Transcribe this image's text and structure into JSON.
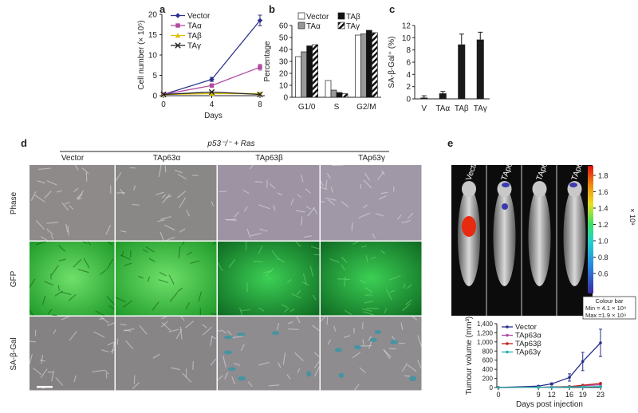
{
  "panels": {
    "a": "a",
    "b": "b",
    "c": "c",
    "d": "d",
    "e": "e"
  },
  "chart_data": [
    {
      "id": "a",
      "type": "line",
      "xlabel": "Days",
      "ylabel": "Cell number (× 10⁵)",
      "x": [
        0,
        4,
        8
      ],
      "xticks": [
        "0",
        "4",
        "8"
      ],
      "ylim": [
        0,
        20
      ],
      "yticks": [
        "0",
        "5",
        "10",
        "15",
        "20"
      ],
      "series": [
        {
          "name": "Vector",
          "values": [
            0.3,
            4,
            18.5
          ],
          "err": [
            0,
            0.5,
            1.3
          ],
          "color": "#2a2f8c",
          "marker": "diamond"
        },
        {
          "name": "TAα",
          "values": [
            0.3,
            2.5,
            7
          ],
          "err": [
            0,
            0.3,
            0.7
          ],
          "color": "#b04aa0",
          "marker": "square"
        },
        {
          "name": "TAβ",
          "values": [
            0.3,
            0.5,
            0.5
          ],
          "err": [
            0,
            0,
            0
          ],
          "color": "#e0c000",
          "marker": "triangle"
        },
        {
          "name": "TAγ",
          "values": [
            0.3,
            0.9,
            0.3
          ],
          "err": [
            0,
            0,
            0
          ],
          "color": "#222222",
          "marker": "x"
        }
      ]
    },
    {
      "id": "b",
      "type": "bar",
      "ylabel": "Percentage",
      "categories": [
        "G1/0",
        "S",
        "G2/M"
      ],
      "ylim": [
        0,
        60
      ],
      "yticks": [
        "0",
        "10",
        "20",
        "30",
        "40",
        "50",
        "60"
      ],
      "series": [
        {
          "name": "Vector",
          "values": [
            34,
            14,
            52
          ],
          "fill": "#ffffff"
        },
        {
          "name": "TAα",
          "values": [
            38,
            6,
            53
          ],
          "fill": "#999999"
        },
        {
          "name": "TAβ",
          "values": [
            43,
            4,
            56
          ],
          "fill": "#111111"
        },
        {
          "name": "TAγ",
          "values": [
            44,
            3,
            54
          ],
          "fill": "hatch"
        }
      ]
    },
    {
      "id": "c",
      "type": "bar",
      "ylabel": "SA-β-Gal⁺ (%)",
      "categories": [
        "V",
        "TAα",
        "TAβ",
        "TAγ"
      ],
      "values": [
        0.2,
        0.9,
        8.9,
        9.7
      ],
      "err": [
        0.3,
        0.3,
        1.7,
        1.2
      ],
      "ylim": [
        0,
        12
      ],
      "yticks": [
        "0",
        "2",
        "4",
        "6",
        "8",
        "10",
        "12"
      ]
    },
    {
      "id": "e",
      "type": "line",
      "xlabel": "Days post injection",
      "ylabel": "Tumour volume (mm³)",
      "x": [
        0,
        9,
        12,
        16,
        19,
        23
      ],
      "xticks": [
        "0",
        "9",
        "12",
        "16",
        "19",
        "23"
      ],
      "ylim": [
        0,
        1400
      ],
      "yticks": [
        "0",
        "200",
        "400",
        "600",
        "800",
        "1,000",
        "1,200",
        "1,400"
      ],
      "series": [
        {
          "name": "Vector",
          "values": [
            0,
            30,
            80,
            220,
            570,
            980
          ],
          "err": [
            0,
            10,
            20,
            80,
            200,
            300
          ],
          "color": "#2a2f8c"
        },
        {
          "name": "TAp63α",
          "values": [
            0,
            5,
            10,
            20,
            40,
            60
          ],
          "err": [
            0,
            0,
            0,
            0,
            0,
            0
          ],
          "color": "#b04aa0"
        },
        {
          "name": "TAp63β",
          "values": [
            0,
            5,
            10,
            20,
            50,
            90
          ],
          "err": [
            0,
            0,
            0,
            0,
            0,
            0
          ],
          "color": "#c02020"
        },
        {
          "name": "TAp63γ",
          "values": [
            0,
            5,
            5,
            10,
            15,
            20
          ],
          "err": [
            0,
            0,
            0,
            0,
            0,
            0
          ],
          "color": "#20b0b0"
        }
      ]
    }
  ],
  "panel_d": {
    "header": "p53⁻/⁻ + Ras",
    "columns": [
      "Vector",
      "TAp63α",
      "TAp63β",
      "TAp63γ"
    ],
    "rows": [
      "Phase",
      "GFP",
      "SA-β-Gal"
    ]
  },
  "panel_e_imaging": {
    "labels": [
      "Vector",
      "TAp63α",
      "TAp63β",
      "TAp63γ"
    ],
    "colorbar_ticks": [
      "1.8",
      "1.6",
      "1.4",
      "1.2",
      "1.0",
      "0.8",
      "0.6"
    ],
    "colorbar_unit": "× 10⁹",
    "colorbar_caption": "Colour bar",
    "colorbar_min": "Min = 4.1 × 10⁸",
    "colorbar_max": "Max =1.9 × 10⁹"
  }
}
